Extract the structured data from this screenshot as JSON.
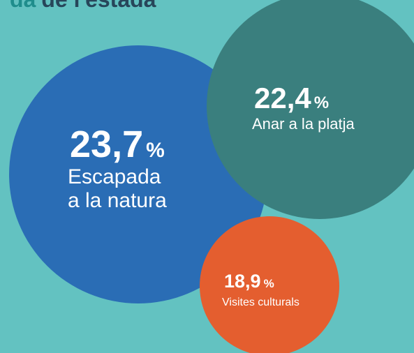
{
  "chart_data": {
    "type": "bubble",
    "title_highlight": "da",
    "title": "de l'estada",
    "categories": [
      "Escapada\na la natura",
      "Anar a la platja",
      "Visites culturals"
    ],
    "values": [
      23.7,
      22.4,
      18.9
    ],
    "value_labels": [
      "23,7%",
      "22,4%",
      "18,9%"
    ],
    "colors": [
      "#2a6db5",
      "#3a7f7e",
      "#e45e2f"
    ],
    "background": "#63c2c1"
  }
}
